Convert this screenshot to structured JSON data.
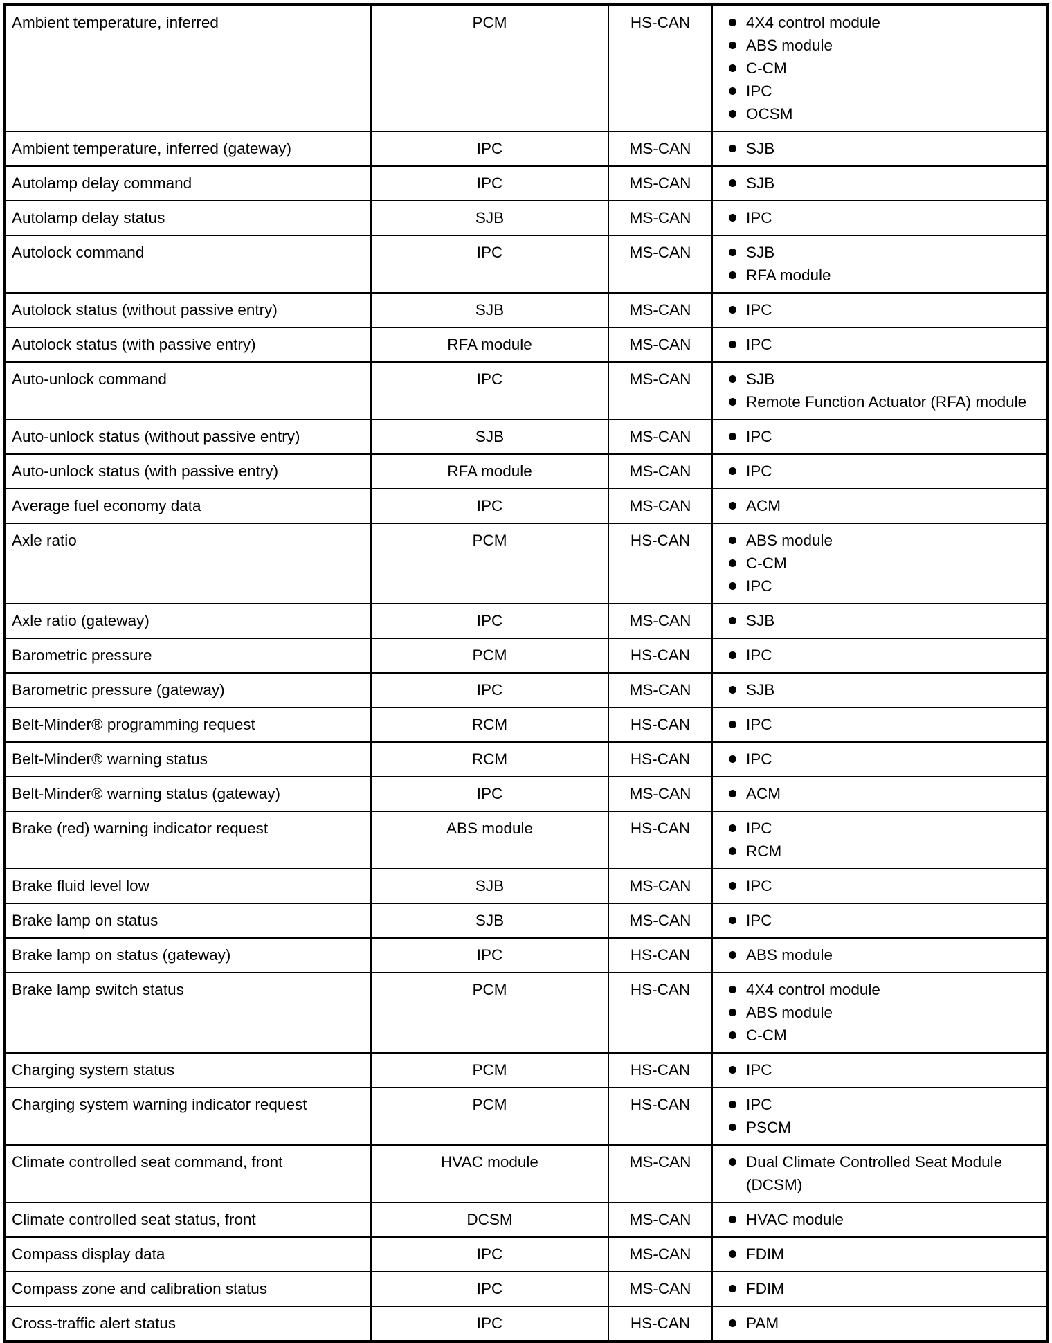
{
  "rows": [
    {
      "message": "Ambient temperature, inferred",
      "originator": "PCM",
      "network": "HS-CAN",
      "receivers": [
        "4X4 control module",
        "ABS module",
        "C-CM",
        "IPC",
        "OCSM"
      ]
    },
    {
      "message": "Ambient temperature, inferred (gateway)",
      "originator": "IPC",
      "network": "MS-CAN",
      "receivers": [
        "SJB"
      ]
    },
    {
      "message": "Autolamp delay command",
      "originator": "IPC",
      "network": "MS-CAN",
      "receivers": [
        "SJB"
      ]
    },
    {
      "message": "Autolamp delay status",
      "originator": "SJB",
      "network": "MS-CAN",
      "receivers": [
        "IPC"
      ]
    },
    {
      "message": "Autolock command",
      "originator": "IPC",
      "network": "MS-CAN",
      "receivers": [
        "SJB",
        "RFA module"
      ]
    },
    {
      "message": "Autolock status (without passive entry)",
      "originator": "SJB",
      "network": "MS-CAN",
      "receivers": [
        "IPC"
      ]
    },
    {
      "message": "Autolock status (with passive entry)",
      "originator": "RFA module",
      "network": "MS-CAN",
      "receivers": [
        "IPC"
      ]
    },
    {
      "message": "Auto-unlock command",
      "originator": "IPC",
      "network": "MS-CAN",
      "receivers": [
        "SJB",
        "Remote Function Actuator (RFA) module"
      ]
    },
    {
      "message": "Auto-unlock status (without passive entry)",
      "originator": "SJB",
      "network": "MS-CAN",
      "receivers": [
        "IPC"
      ]
    },
    {
      "message": "Auto-unlock status (with passive entry)",
      "originator": "RFA module",
      "network": "MS-CAN",
      "receivers": [
        "IPC"
      ]
    },
    {
      "message": "Average fuel economy data",
      "originator": "IPC",
      "network": "MS-CAN",
      "receivers": [
        "ACM"
      ]
    },
    {
      "message": "Axle ratio",
      "originator": "PCM",
      "network": "HS-CAN",
      "receivers": [
        "ABS module",
        "C-CM",
        "IPC"
      ]
    },
    {
      "message": "Axle ratio (gateway)",
      "originator": "IPC",
      "network": "MS-CAN",
      "receivers": [
        "SJB"
      ]
    },
    {
      "message": "Barometric pressure",
      "originator": "PCM",
      "network": "HS-CAN",
      "receivers": [
        "IPC"
      ]
    },
    {
      "message": "Barometric pressure (gateway)",
      "originator": "IPC",
      "network": "MS-CAN",
      "receivers": [
        "SJB"
      ]
    },
    {
      "message": "Belt-Minder® programming request",
      "originator": "RCM",
      "network": "HS-CAN",
      "receivers": [
        "IPC"
      ]
    },
    {
      "message": "Belt-Minder® warning status",
      "originator": "RCM",
      "network": "HS-CAN",
      "receivers": [
        "IPC"
      ]
    },
    {
      "message": "Belt-Minder® warning status (gateway)",
      "originator": "IPC",
      "network": "MS-CAN",
      "receivers": [
        "ACM"
      ]
    },
    {
      "message": "Brake (red) warning indicator request",
      "originator": "ABS module",
      "network": "HS-CAN",
      "receivers": [
        "IPC",
        "RCM"
      ]
    },
    {
      "message": "Brake fluid level low",
      "originator": "SJB",
      "network": "MS-CAN",
      "receivers": [
        "IPC"
      ]
    },
    {
      "message": "Brake lamp on status",
      "originator": "SJB",
      "network": "MS-CAN",
      "receivers": [
        "IPC"
      ]
    },
    {
      "message": "Brake lamp on status (gateway)",
      "originator": "IPC",
      "network": "HS-CAN",
      "receivers": [
        "ABS module"
      ]
    },
    {
      "message": "Brake lamp switch status",
      "originator": "PCM",
      "network": "HS-CAN",
      "receivers": [
        "4X4 control module",
        "ABS module",
        "C-CM"
      ]
    },
    {
      "message": "Charging system status",
      "originator": "PCM",
      "network": "HS-CAN",
      "receivers": [
        "IPC"
      ]
    },
    {
      "message": "Charging system warning indicator request",
      "originator": "PCM",
      "network": "HS-CAN",
      "receivers": [
        "IPC",
        "PSCM"
      ]
    },
    {
      "message": "Climate controlled seat command, front",
      "originator": "HVAC module",
      "network": "MS-CAN",
      "receivers": [
        "Dual Climate Controlled Seat Module (DCSM)"
      ]
    },
    {
      "message": "Climate controlled seat status, front",
      "originator": "DCSM",
      "network": "MS-CAN",
      "receivers": [
        "HVAC module"
      ]
    },
    {
      "message": "Compass display data",
      "originator": "IPC",
      "network": "MS-CAN",
      "receivers": [
        "FDIM"
      ]
    },
    {
      "message": "Compass zone and calibration status",
      "originator": "IPC",
      "network": "MS-CAN",
      "receivers": [
        "FDIM"
      ]
    },
    {
      "message": "Cross-traffic alert status",
      "originator": "IPC",
      "network": "HS-CAN",
      "receivers": [
        "PAM"
      ]
    }
  ]
}
